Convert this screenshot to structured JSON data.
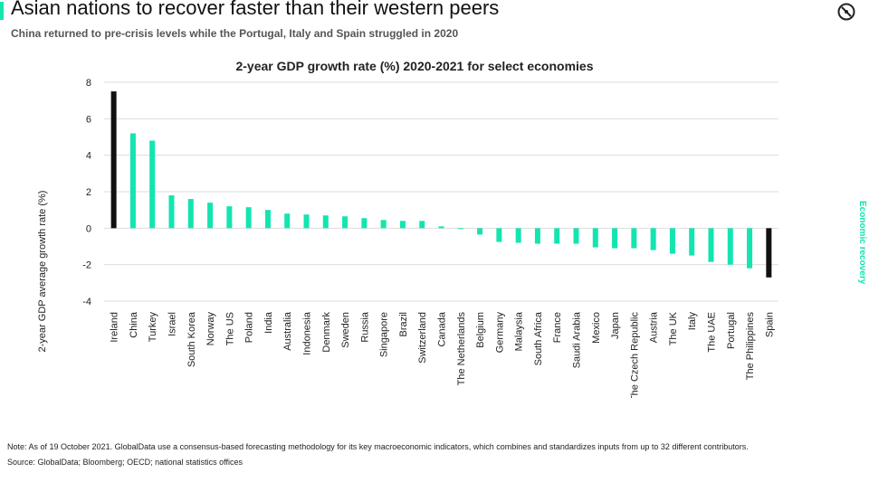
{
  "header": {
    "title": "Asian nations to recover faster than their western peers",
    "subtitle": "China returned to pre-crisis levels while the Portugal, Italy and Spain struggled in 2020",
    "logo_icon": "globaldata-logo-icon",
    "side_label": "Economic recovery",
    "accent_color": "#12e5b0"
  },
  "chart_data": {
    "type": "bar",
    "title": "2-year GDP growth rate (%) 2020-2021 for select economies",
    "xlabel": "",
    "ylabel": "2-year GDP average growth rate (%)",
    "ylim": [
      -4,
      8
    ],
    "yticks": [
      -4,
      -2,
      0,
      2,
      4,
      6,
      8
    ],
    "grid": true,
    "categories": [
      "Ireland",
      "China",
      "Turkey",
      "Israel",
      "South Korea",
      "Norway",
      "The US",
      "Poland",
      "India",
      "Australia",
      "Indonesia",
      "Denmark",
      "Sweden",
      "Russia",
      "Singapore",
      "Brazil",
      "Switzerland",
      "Canada",
      "The Netherlands",
      "Belgium",
      "Germany",
      "Malaysia",
      "South Africa",
      "France",
      "Saudi Arabia",
      "Mexico",
      "Japan",
      "The Czech Republic",
      "Austria",
      "The UK",
      "Italy",
      "The UAE",
      "Portugal",
      "The Philippines",
      "Spain"
    ],
    "values": [
      7.5,
      5.2,
      4.8,
      1.8,
      1.6,
      1.4,
      1.2,
      1.15,
      1.0,
      0.8,
      0.75,
      0.7,
      0.65,
      0.55,
      0.45,
      0.4,
      0.4,
      0.1,
      -0.05,
      -0.35,
      -0.75,
      -0.8,
      -0.85,
      -0.85,
      -0.85,
      -1.05,
      -1.1,
      -1.1,
      -1.2,
      -1.4,
      -1.5,
      -1.85,
      -2.0,
      -2.2,
      -2.7
    ],
    "colors": {
      "default": "#12e5b0",
      "highlight": "#111111",
      "grid": "#dddddd"
    },
    "highlight": [
      "Ireland",
      "Spain"
    ]
  },
  "footer": {
    "note": "Note: As of 19 October 2021. GlobalData use a consensus-based forecasting methodology for its key macroeconomic indicators, which combines and standardizes inputs from up to 32 different contributors.",
    "source": "Source: GlobalData; Bloomberg; OECD; national statistics offices"
  }
}
